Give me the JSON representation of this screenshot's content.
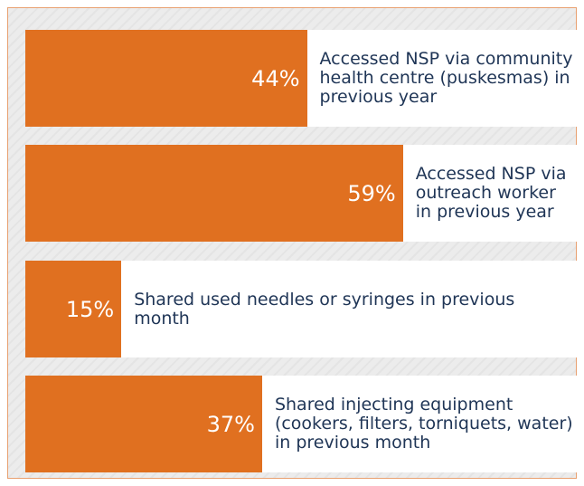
{
  "chart_data": {
    "type": "bar",
    "orientation": "horizontal",
    "categories": [
      "Accessed NSP via community health centre (puskesmas) in previous year",
      "Accessed NSP via outreach worker in previous year",
      "Shared used needles or syringes in previous month",
      "Shared injecting equipment (cookers, filters, torniquets, water) in previous month"
    ],
    "values": [
      44,
      59,
      15,
      37
    ],
    "value_labels": [
      "44%",
      "59%",
      "15%",
      "37%"
    ],
    "color": "#e07020"
  }
}
